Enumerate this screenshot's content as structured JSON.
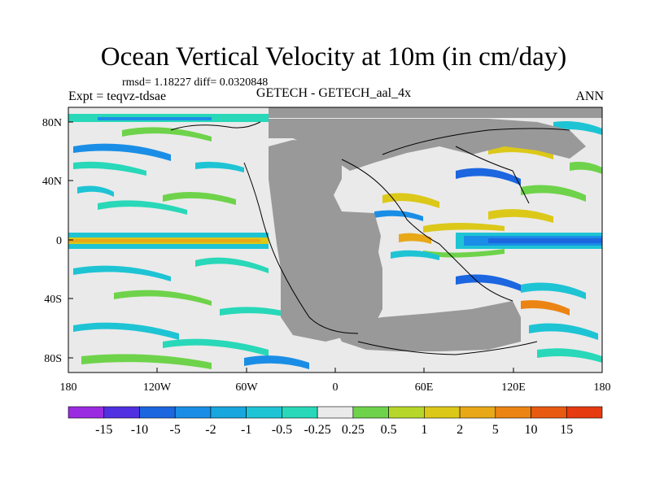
{
  "figure": {
    "title": "Ocean Vertical Velocity at 10m (in cm/day)",
    "stats": "rmsd= 1.18227 diff= 0.0320848",
    "experiment": "Expt = teqvz-tdsae",
    "model": "GETECH - GETECH_aal_4x",
    "season": "ANN"
  },
  "axes": {
    "x_ticks": [
      "180",
      "120W",
      "60W",
      "0",
      "60E",
      "120E",
      "180"
    ],
    "y_ticks": [
      "80N",
      "40N",
      "0",
      "40S",
      "80S"
    ]
  },
  "colorbar": {
    "labels": [
      "-15",
      "-10",
      "-5",
      "-2",
      "-1",
      "-0.5",
      "-0.25",
      "0.25",
      "0.5",
      "1",
      "2",
      "5",
      "10",
      "15"
    ],
    "colors": [
      "#9a2be0",
      "#5030e0",
      "#1c66e0",
      "#1a8ee6",
      "#18a6de",
      "#1ec4d4",
      "#28d8b8",
      "#eaeaea",
      "#6ed34a",
      "#b6d72a",
      "#dcc818",
      "#e8a818",
      "#ec8414",
      "#e85a10",
      "#e63a10"
    ]
  },
  "map_colors": {
    "land": "#999999",
    "background": "#eaeaea",
    "coast": "#000000"
  }
}
